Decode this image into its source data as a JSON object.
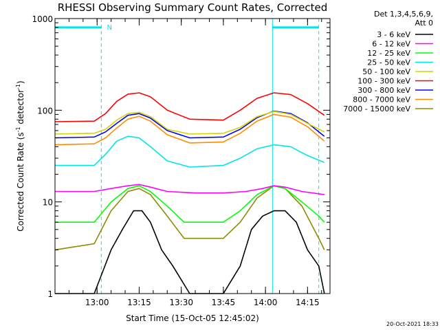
{
  "chart_data": {
    "type": "line",
    "title": "RHESSI Observing Summary Count Rates, Corrected",
    "xlabel": "Start Time (15-Oct-05 12:45:02)",
    "ylabel": "Corrected Count Rate (s",
    "ylabel_sup1": "-1",
    "ylabel_mid": " detector",
    "ylabel_sup2": "-1",
    "ylabel_end": ")",
    "yscale": "log",
    "ylim": [
      1,
      1000
    ],
    "xlim_minutes": [
      0,
      98
    ],
    "x_ticks": [
      {
        "label": "13:00",
        "min": 15
      },
      {
        "label": "13:15",
        "min": 30
      },
      {
        "label": "13:30",
        "min": 45
      },
      {
        "label": "13:45",
        "min": 60
      },
      {
        "label": "14:00",
        "min": 75
      },
      {
        "label": "14:15",
        "min": 90
      }
    ],
    "y_ticks": [
      {
        "label": "1",
        "value": 1
      },
      {
        "label": "10",
        "value": 10
      },
      {
        "label": "100",
        "value": 100
      },
      {
        "label": "1000",
        "value": 1000
      }
    ],
    "legend_header_1": "Det 1,3,4,5,6,9,",
    "legend_header_2": "Att 0",
    "series": [
      {
        "name": "3 - 6 keV",
        "color": "#000000",
        "points": [
          [
            0,
            1
          ],
          [
            14,
            1
          ],
          [
            20,
            3
          ],
          [
            24,
            5
          ],
          [
            28,
            8
          ],
          [
            31,
            8
          ],
          [
            34,
            6
          ],
          [
            38,
            3
          ],
          [
            42,
            2
          ],
          [
            48,
            1
          ],
          [
            60,
            1
          ],
          [
            66,
            2
          ],
          [
            70,
            5
          ],
          [
            74,
            7
          ],
          [
            78,
            8
          ],
          [
            82,
            8
          ],
          [
            86,
            6
          ],
          [
            90,
            3
          ],
          [
            94,
            2
          ],
          [
            96,
            1
          ]
        ]
      },
      {
        "name": "6 - 12 keV",
        "color": "#ff00ff",
        "points": [
          [
            0,
            13
          ],
          [
            14,
            13
          ],
          [
            20,
            14
          ],
          [
            26,
            15
          ],
          [
            30,
            15.5
          ],
          [
            34,
            14.5
          ],
          [
            40,
            13
          ],
          [
            50,
            12.5
          ],
          [
            60,
            12.5
          ],
          [
            68,
            13
          ],
          [
            74,
            14
          ],
          [
            78,
            15
          ],
          [
            82,
            14.5
          ],
          [
            88,
            13
          ],
          [
            96,
            12
          ]
        ]
      },
      {
        "name": "12 - 25 keV",
        "color": "#00ff00",
        "points": [
          [
            0,
            6
          ],
          [
            14,
            6
          ],
          [
            20,
            10
          ],
          [
            26,
            14
          ],
          [
            30,
            15
          ],
          [
            34,
            13
          ],
          [
            40,
            9
          ],
          [
            46,
            6
          ],
          [
            60,
            6
          ],
          [
            66,
            8
          ],
          [
            72,
            12
          ],
          [
            78,
            15
          ],
          [
            82,
            14
          ],
          [
            88,
            10
          ],
          [
            94,
            7
          ],
          [
            96,
            6
          ]
        ]
      },
      {
        "name": "25 - 50 keV",
        "color": "#00e5e5",
        "points": [
          [
            0,
            25
          ],
          [
            14,
            25
          ],
          [
            18,
            33
          ],
          [
            22,
            46
          ],
          [
            26,
            52
          ],
          [
            30,
            50
          ],
          [
            34,
            40
          ],
          [
            40,
            28
          ],
          [
            48,
            24
          ],
          [
            60,
            25
          ],
          [
            66,
            30
          ],
          [
            72,
            38
          ],
          [
            78,
            42
          ],
          [
            84,
            40
          ],
          [
            90,
            32
          ],
          [
            96,
            27
          ]
        ]
      },
      {
        "name": "50 - 100 keV",
        "color": "#d4d400",
        "points": [
          [
            0,
            55
          ],
          [
            14,
            56
          ],
          [
            18,
            62
          ],
          [
            22,
            78
          ],
          [
            26,
            92
          ],
          [
            30,
            95
          ],
          [
            34,
            85
          ],
          [
            40,
            62
          ],
          [
            48,
            55
          ],
          [
            60,
            56
          ],
          [
            66,
            65
          ],
          [
            72,
            85
          ],
          [
            78,
            97
          ],
          [
            84,
            90
          ],
          [
            90,
            72
          ],
          [
            96,
            58
          ]
        ]
      },
      {
        "name": "100 - 300 keV",
        "color": "#ff0000",
        "points": [
          [
            0,
            75
          ],
          [
            14,
            76
          ],
          [
            18,
            92
          ],
          [
            22,
            125
          ],
          [
            26,
            150
          ],
          [
            30,
            155
          ],
          [
            34,
            140
          ],
          [
            40,
            100
          ],
          [
            48,
            80
          ],
          [
            60,
            78
          ],
          [
            66,
            100
          ],
          [
            72,
            135
          ],
          [
            78,
            155
          ],
          [
            84,
            148
          ],
          [
            90,
            118
          ],
          [
            96,
            88
          ]
        ]
      },
      {
        "name": "300 - 800 keV",
        "color": "#0000ff",
        "points": [
          [
            0,
            50
          ],
          [
            14,
            51
          ],
          [
            18,
            58
          ],
          [
            22,
            72
          ],
          [
            26,
            88
          ],
          [
            30,
            92
          ],
          [
            34,
            82
          ],
          [
            40,
            60
          ],
          [
            48,
            50
          ],
          [
            60,
            51
          ],
          [
            66,
            62
          ],
          [
            72,
            83
          ],
          [
            78,
            98
          ],
          [
            84,
            92
          ],
          [
            90,
            73
          ],
          [
            96,
            52
          ]
        ]
      },
      {
        "name": "800 - 7000 keV",
        "color": "#ff8c00",
        "points": [
          [
            0,
            42
          ],
          [
            14,
            43
          ],
          [
            18,
            50
          ],
          [
            22,
            64
          ],
          [
            26,
            80
          ],
          [
            30,
            86
          ],
          [
            34,
            76
          ],
          [
            40,
            54
          ],
          [
            48,
            44
          ],
          [
            60,
            45
          ],
          [
            66,
            56
          ],
          [
            72,
            76
          ],
          [
            78,
            90
          ],
          [
            84,
            84
          ],
          [
            90,
            66
          ],
          [
            96,
            46
          ]
        ]
      },
      {
        "name": "7000 - 15000 keV",
        "color": "#8b8b00",
        "points": [
          [
            0,
            3
          ],
          [
            14,
            3.5
          ],
          [
            20,
            8
          ],
          [
            26,
            13
          ],
          [
            30,
            14
          ],
          [
            34,
            12
          ],
          [
            40,
            7
          ],
          [
            46,
            4
          ],
          [
            60,
            4
          ],
          [
            66,
            6
          ],
          [
            72,
            11
          ],
          [
            78,
            15
          ],
          [
            82,
            14
          ],
          [
            88,
            9
          ],
          [
            94,
            4
          ],
          [
            96,
            3
          ]
        ]
      }
    ],
    "markers": {
      "color": "#00e5e5",
      "solid_lines_min": [
        0,
        77.5
      ],
      "dashed_lines_min": [
        16.5,
        94
      ],
      "bars": [
        [
          0,
          16.5,
          800
        ],
        [
          77.5,
          94,
          800
        ]
      ],
      "annotation": {
        "label": "N",
        "min": 18,
        "value": 800
      }
    }
  },
  "footer": {
    "timestamp": "20-Oct-2021 18:33"
  }
}
